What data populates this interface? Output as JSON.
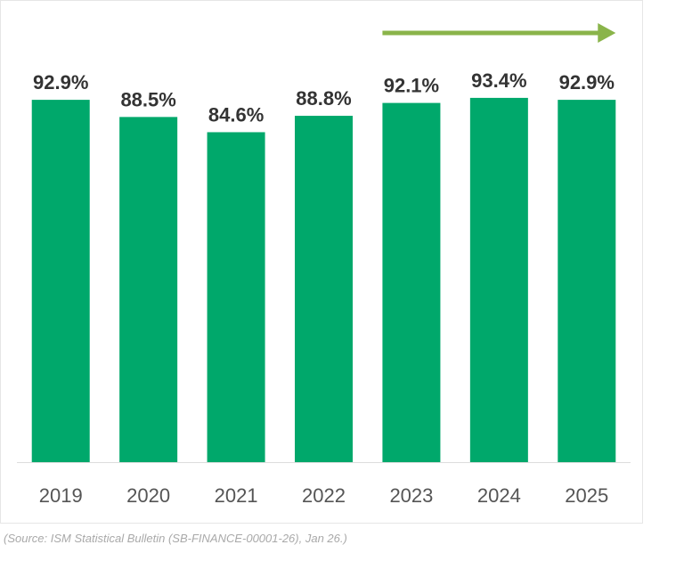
{
  "chart_data": {
    "type": "bar",
    "categories": [
      "2019",
      "2020",
      "2021",
      "2022",
      "2023",
      "2024",
      "2025"
    ],
    "values": [
      92.9,
      88.5,
      84.6,
      88.8,
      92.1,
      93.4,
      92.9
    ],
    "data_labels": [
      "92.9%",
      "88.5%",
      "84.6%",
      "88.8%",
      "92.1%",
      "93.4%",
      "92.9%"
    ],
    "ylim": [
      0,
      100
    ],
    "grid": false,
    "legend": "none",
    "bar_color": "#00a86b",
    "arrow_color": "#8ab44a",
    "annotation": {
      "type": "arrow",
      "direction": "right",
      "span_categories": [
        "2023",
        "2025"
      ]
    }
  },
  "source": "(Source: ISM Statistical Bulletin (SB-FINANCE-00001-26), Jan 26.)"
}
